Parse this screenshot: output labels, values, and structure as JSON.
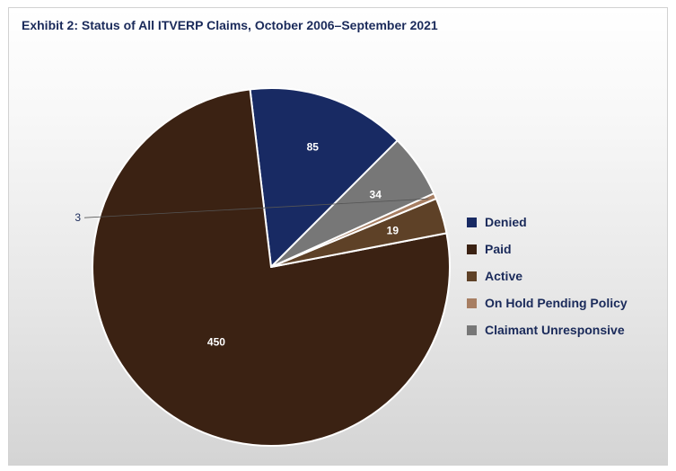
{
  "chart_data": {
    "type": "pie",
    "title": "Exhibit 2: Status of All ITVERP Claims, October 2006–September 2021",
    "legend_position": "right",
    "slices": [
      {
        "label": "Denied",
        "value": 85,
        "color": "#182a63"
      },
      {
        "label": "Paid",
        "value": 450,
        "color": "#3b2213"
      },
      {
        "label": "Active",
        "value": 19,
        "color": "#5e4127"
      },
      {
        "label": "On Hold Pending Policy",
        "value": 3,
        "color": "#a77e62"
      },
      {
        "label": "Claimant Unresponsive",
        "value": 34,
        "color": "#777777"
      }
    ],
    "legend": [
      {
        "label": "Denied",
        "color": "#182a63"
      },
      {
        "label": "Paid",
        "color": "#3b2213"
      },
      {
        "label": "Active",
        "color": "#5e4127"
      },
      {
        "label": "On Hold Pending Policy",
        "color": "#a77e62"
      },
      {
        "label": "Claimant Unresponsive",
        "color": "#777777"
      }
    ]
  }
}
